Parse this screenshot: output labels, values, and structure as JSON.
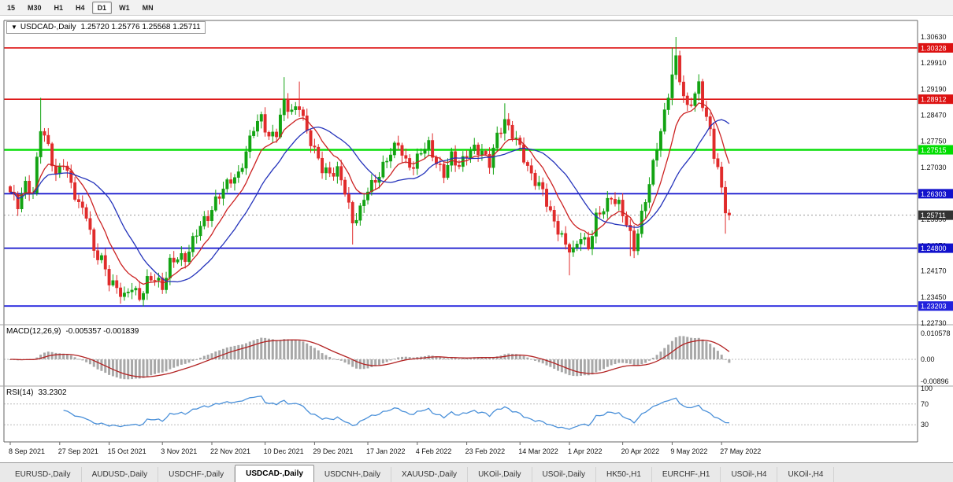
{
  "toolbar": {
    "timeframes": [
      "15",
      "M30",
      "H1",
      "H4",
      "D1",
      "W1",
      "MN"
    ],
    "active": "D1"
  },
  "chart": {
    "collapse_icon": "▼",
    "symbol_label": "USDCAD-,Daily",
    "ohlc_text": "1.25720 1.25776 1.25568 1.25711",
    "macd_name": "MACD(12,26,9)",
    "macd_values": "-0.005357 -0.001839",
    "rsi_name": "RSI(14)",
    "rsi_value": "33.2302"
  },
  "chart_data": {
    "type": "candlestick",
    "symbol": "USDCAD",
    "timeframe": "Daily",
    "title": "USDCAD-,Daily",
    "ohlc_current": {
      "open": 1.2572,
      "high": 1.25776,
      "low": 1.25568,
      "close": 1.25711
    },
    "colors": {
      "up": "#12a312",
      "down": "#e02b2b",
      "ma_fast": "#cc2222",
      "ma_slow": "#2433bb",
      "macd_hist": "#a8a8a8",
      "macd_signal": "#b22222",
      "rsi": "#4a90d9",
      "current_badge": "#333333"
    },
    "price_axis": {
      "labels": [
        "1.30630",
        "1.29910",
        "1.29190",
        "1.28470",
        "1.27750",
        "1.27030",
        "1.26310",
        "1.25590",
        "1.24870",
        "1.24170",
        "1.23450",
        "1.22730"
      ]
    },
    "levels": [
      {
        "label": "1.30328",
        "price": 1.30328,
        "color": "#dd1111",
        "width": 1.6
      },
      {
        "label": "1.28912",
        "price": 1.28912,
        "color": "#dd1111",
        "width": 1.6
      },
      {
        "label": "1.27515",
        "price": 1.27515,
        "color": "#00dd00",
        "width": 2.4
      },
      {
        "label": "1.26303",
        "price": 1.26303,
        "color": "#1111cc",
        "width": 1.8
      },
      {
        "label": "1.24800",
        "price": 1.248,
        "color": "#1111cc",
        "width": 1.8
      },
      {
        "label": "1.23203",
        "price": 1.23203,
        "color": "#2222dd",
        "width": 1.8
      }
    ],
    "current_price": {
      "label": "1.25711",
      "price": 1.25711
    },
    "candle_count": 190,
    "wiggle": 0.0013,
    "close_waypoints": [
      [
        0,
        1.2635
      ],
      [
        2,
        1.26
      ],
      [
        4,
        1.2655
      ],
      [
        6,
        1.263
      ],
      [
        8,
        1.2815
      ],
      [
        10,
        1.276
      ],
      [
        12,
        1.268
      ],
      [
        14,
        1.272
      ],
      [
        16,
        1.2655
      ],
      [
        18,
        1.26
      ],
      [
        20,
        1.2575
      ],
      [
        22,
        1.247
      ],
      [
        24,
        1.245
      ],
      [
        26,
        1.239
      ],
      [
        28,
        1.237
      ],
      [
        30,
        1.2345
      ],
      [
        32,
        1.2375
      ],
      [
        34,
        1.234
      ],
      [
        36,
        1.239
      ],
      [
        38,
        1.24
      ],
      [
        40,
        1.237
      ],
      [
        42,
        1.244
      ],
      [
        44,
        1.2455
      ],
      [
        46,
        1.245
      ],
      [
        48,
        1.25
      ],
      [
        50,
        1.2545
      ],
      [
        52,
        1.2565
      ],
      [
        54,
        1.261
      ],
      [
        56,
        1.2645
      ],
      [
        58,
        1.267
      ],
      [
        60,
        1.268
      ],
      [
        62,
        1.2745
      ],
      [
        64,
        1.2815
      ],
      [
        66,
        1.284
      ],
      [
        68,
        1.2785
      ],
      [
        70,
        1.28
      ],
      [
        72,
        1.2885
      ],
      [
        74,
        1.2855
      ],
      [
        76,
        1.2875
      ],
      [
        78,
        1.28
      ],
      [
        80,
        1.275
      ],
      [
        82,
        1.27
      ],
      [
        84,
        1.2685
      ],
      [
        86,
        1.2695
      ],
      [
        88,
        1.264
      ],
      [
        90,
        1.255
      ],
      [
        92,
        1.2585
      ],
      [
        94,
        1.2645
      ],
      [
        96,
        1.2665
      ],
      [
        98,
        1.2705
      ],
      [
        100,
        1.2745
      ],
      [
        102,
        1.277
      ],
      [
        104,
        1.2715
      ],
      [
        106,
        1.2705
      ],
      [
        108,
        1.275
      ],
      [
        110,
        1.2765
      ],
      [
        112,
        1.2715
      ],
      [
        114,
        1.2685
      ],
      [
        116,
        1.2735
      ],
      [
        118,
        1.2705
      ],
      [
        120,
        1.274
      ],
      [
        122,
        1.2755
      ],
      [
        124,
        1.2745
      ],
      [
        126,
        1.2715
      ],
      [
        128,
        1.279
      ],
      [
        130,
        1.283
      ],
      [
        132,
        1.2795
      ],
      [
        134,
        1.276
      ],
      [
        136,
        1.27
      ],
      [
        138,
        1.2665
      ],
      [
        140,
        1.264
      ],
      [
        142,
        1.2575
      ],
      [
        144,
        1.253
      ],
      [
        146,
        1.249
      ],
      [
        148,
        1.247
      ],
      [
        150,
        1.2515
      ],
      [
        152,
        1.248
      ],
      [
        154,
        1.2565
      ],
      [
        156,
        1.259
      ],
      [
        158,
        1.262
      ],
      [
        160,
        1.26
      ],
      [
        162,
        1.255
      ],
      [
        164,
        1.248
      ],
      [
        166,
        1.257
      ],
      [
        168,
        1.266
      ],
      [
        170,
        1.276
      ],
      [
        172,
        1.285
      ],
      [
        174,
        1.296
      ],
      [
        175,
        1.3
      ],
      [
        176,
        1.295
      ],
      [
        177,
        1.29
      ],
      [
        178,
        1.2865
      ],
      [
        180,
        1.2905
      ],
      [
        181,
        1.293
      ],
      [
        182,
        1.288
      ],
      [
        184,
        1.28
      ],
      [
        185,
        1.274
      ],
      [
        186,
        1.27
      ],
      [
        187,
        1.264
      ],
      [
        188,
        1.259
      ],
      [
        189,
        1.25711
      ]
    ],
    "spikes": [
      {
        "i": 8,
        "high": 1.2895
      },
      {
        "i": 30,
        "low": 1.2335
      },
      {
        "i": 34,
        "low": 1.2333
      },
      {
        "i": 72,
        "high": 1.2952
      },
      {
        "i": 76,
        "high": 1.294
      },
      {
        "i": 90,
        "low": 1.249
      },
      {
        "i": 130,
        "high": 1.288
      },
      {
        "i": 147,
        "low": 1.2405
      },
      {
        "i": 163,
        "low": 1.2458
      },
      {
        "i": 174,
        "high": 1.3034
      },
      {
        "i": 175,
        "high": 1.3063
      },
      {
        "i": 188,
        "low": 1.252
      },
      {
        "i": 189,
        "low": 1.2557
      }
    ],
    "ma_fast_period": 10,
    "ma_slow_period": 20,
    "macd": {
      "fast": 12,
      "slow": 26,
      "signal": 9,
      "axis": [
        {
          "label": "0.010578",
          "v": 0.010578
        },
        {
          "label": "0.00",
          "v": 0
        },
        {
          "label": "-0.00896",
          "v": -0.00896
        }
      ]
    },
    "rsi": {
      "period": 14,
      "axis": [
        {
          "label": "100",
          "v": 100
        },
        {
          "label": "70",
          "v": 70
        },
        {
          "label": "30",
          "v": 30
        }
      ],
      "levels": [
        70,
        30
      ]
    },
    "x_axis": {
      "dates": [
        {
          "label": "8 Sep 2021",
          "i": 0
        },
        {
          "label": "27 Sep 2021",
          "i": 13
        },
        {
          "label": "15 Oct 2021",
          "i": 26
        },
        {
          "label": "3 Nov 2021",
          "i": 40
        },
        {
          "label": "22 Nov 2021",
          "i": 53
        },
        {
          "label": "10 Dec 2021",
          "i": 67
        },
        {
          "label": "29 Dec 2021",
          "i": 80
        },
        {
          "label": "17 Jan 2022",
          "i": 94
        },
        {
          "label": "4 Feb 2022",
          "i": 107
        },
        {
          "label": "23 Feb 2022",
          "i": 120
        },
        {
          "label": "14 Mar 2022",
          "i": 134
        },
        {
          "label": "1 Apr 2022",
          "i": 147
        },
        {
          "label": "20 Apr 2022",
          "i": 161
        },
        {
          "label": "9 May 2022",
          "i": 174
        },
        {
          "label": "27 May 2022",
          "i": 187
        }
      ]
    }
  },
  "tabs": {
    "items": [
      "EURUSD-,Daily",
      "AUDUSD-,Daily",
      "USDCHF-,Daily",
      "USDCAD-,Daily",
      "USDCNH-,Daily",
      "XAUUSD-,Daily",
      "UKOil-,Daily",
      "USOil-,Daily",
      "HK50-,H1",
      "EURCHF-,H1",
      "USOil-,H4",
      "UKOil-,H4"
    ],
    "active_index": 3
  }
}
